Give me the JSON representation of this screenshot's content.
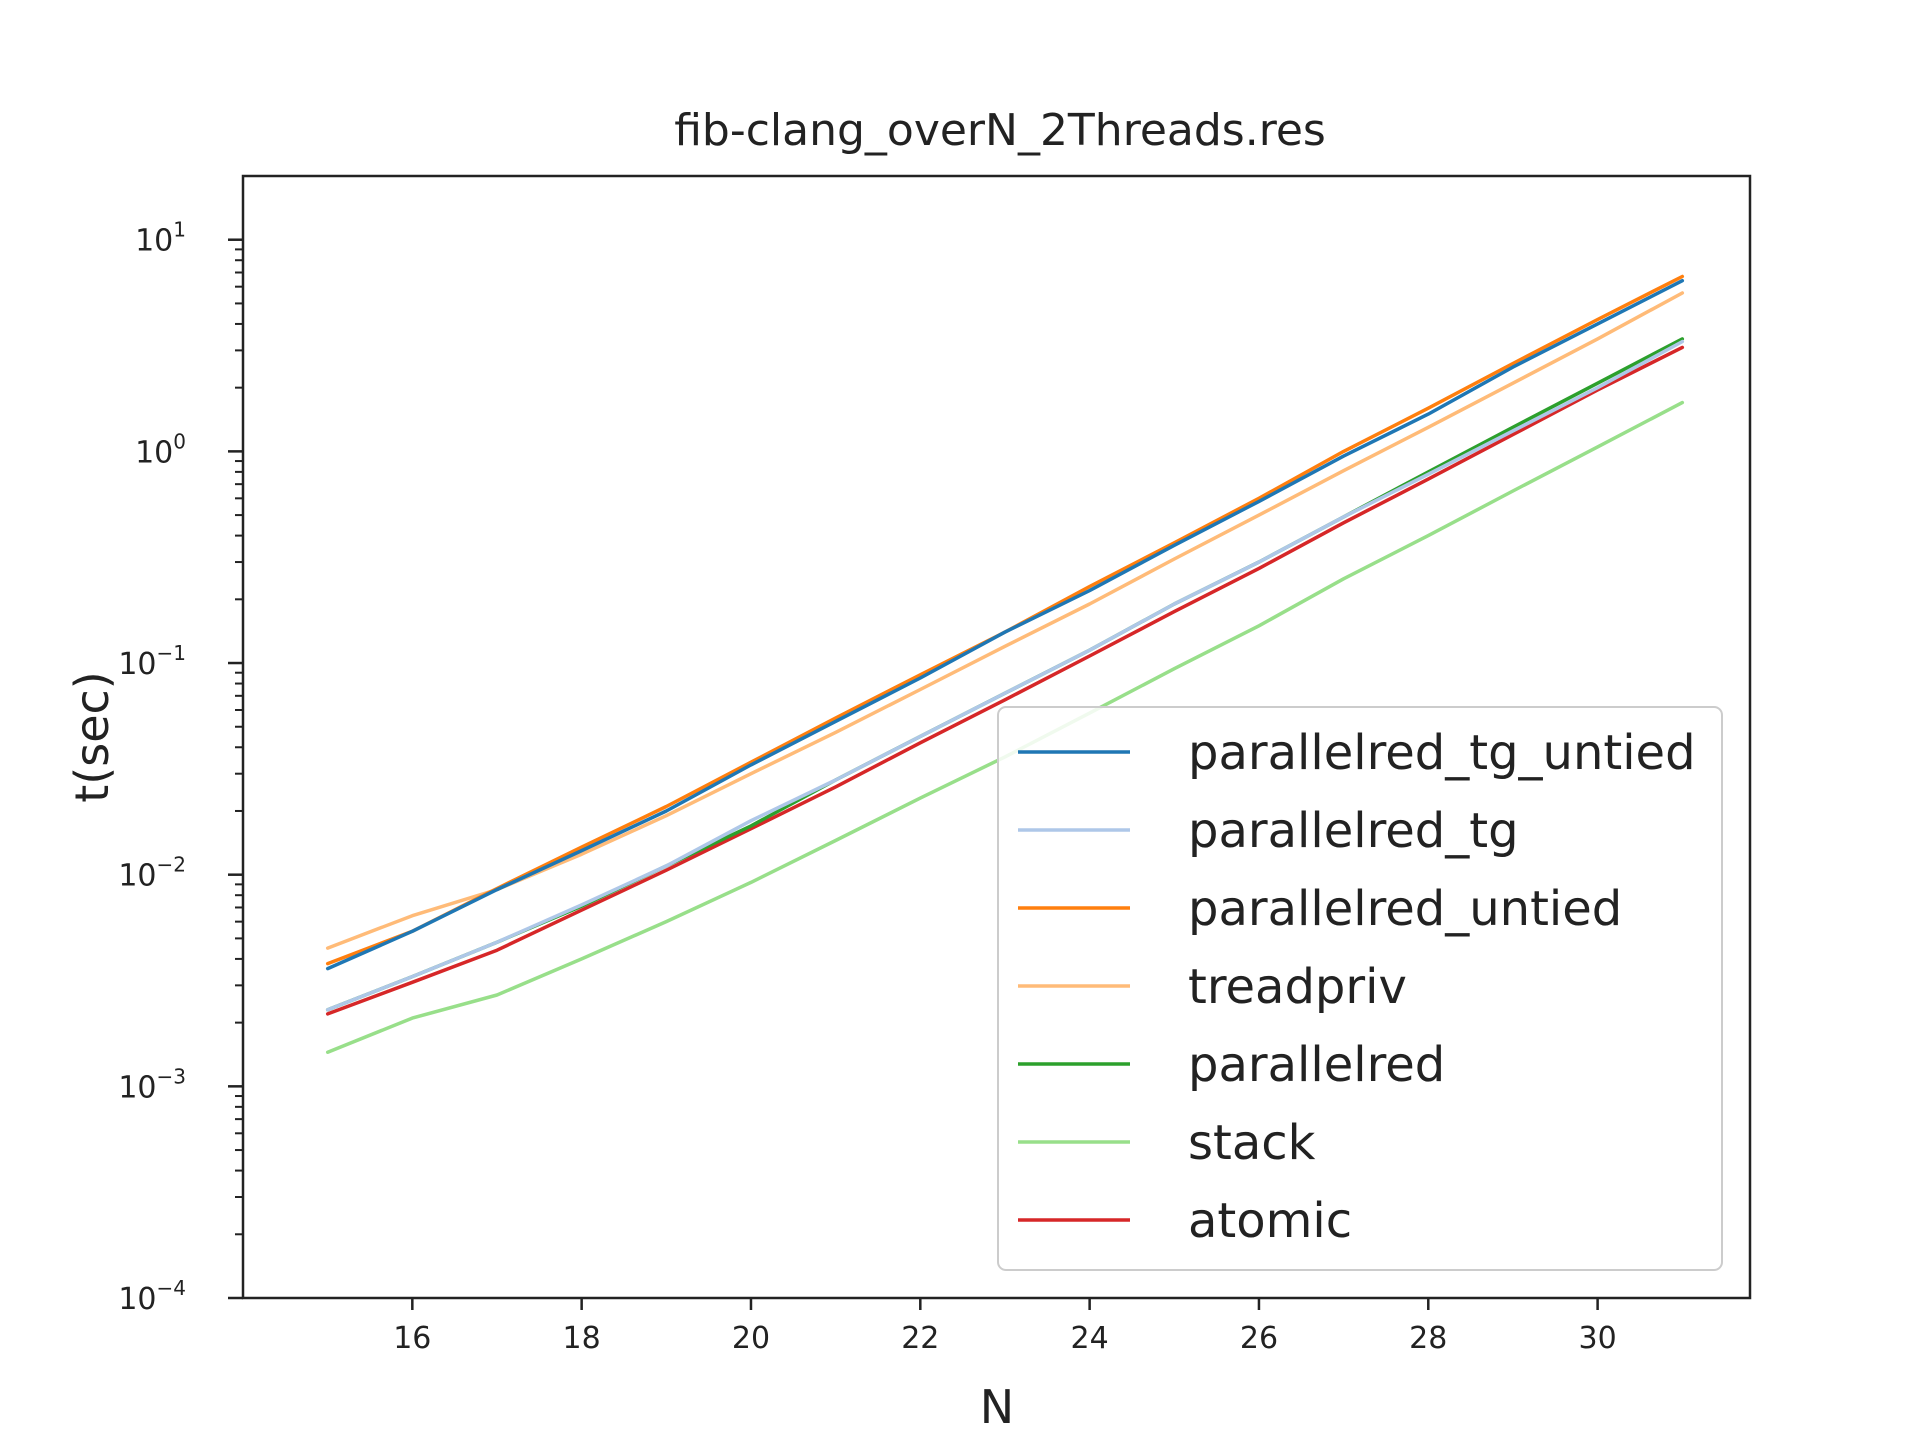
{
  "chart_data": {
    "type": "line",
    "title": "fib-clang_overN_2Threads.res",
    "xlabel": "N",
    "ylabel": "t(sec)",
    "yscale": "log",
    "xlim": [
      14.0,
      31.8
    ],
    "ylim": [
      0.0001,
      20
    ],
    "xticks": [
      "16",
      "18",
      "20",
      "22",
      "24",
      "26",
      "28",
      "30"
    ],
    "yticks": [
      {
        "base": "10",
        "exp": "−4",
        "value": 0.0001
      },
      {
        "base": "10",
        "exp": "−3",
        "value": 0.001
      },
      {
        "base": "10",
        "exp": "−2",
        "value": 0.01
      },
      {
        "base": "10",
        "exp": "−1",
        "value": 0.1
      },
      {
        "base": "10",
        "exp": "0",
        "value": 1
      },
      {
        "base": "10",
        "exp": "1",
        "value": 10
      }
    ],
    "grid": false,
    "legend_position": "lower-right",
    "x": [
      15,
      16,
      17,
      18,
      19,
      20,
      21,
      22,
      23,
      24,
      25,
      26,
      27,
      28,
      29,
      30,
      31
    ],
    "series": [
      {
        "name": "parallelred_tg_untied",
        "color": "#1f77b4",
        "values": [
          0.0036,
          0.0054,
          0.0085,
          0.013,
          0.02,
          0.033,
          0.053,
          0.085,
          0.14,
          0.22,
          0.36,
          0.58,
          0.95,
          1.5,
          2.5,
          4.0,
          6.4
        ]
      },
      {
        "name": "parallelred_tg",
        "color": "#aec7e8",
        "values": [
          0.0023,
          0.0033,
          0.0048,
          0.0072,
          0.011,
          0.018,
          0.028,
          0.045,
          0.072,
          0.115,
          0.19,
          0.3,
          0.49,
          0.78,
          1.25,
          2.0,
          3.3
        ]
      },
      {
        "name": "parallelred_untied",
        "color": "#ff7f0e",
        "values": [
          0.0038,
          0.0054,
          0.0086,
          0.0135,
          0.021,
          0.034,
          0.055,
          0.088,
          0.14,
          0.23,
          0.37,
          0.6,
          1.0,
          1.6,
          2.6,
          4.2,
          6.7
        ]
      },
      {
        "name": "treadpriv",
        "color": "#ffbb78",
        "values": [
          0.0045,
          0.0064,
          0.0085,
          0.0125,
          0.019,
          0.03,
          0.047,
          0.075,
          0.12,
          0.19,
          0.31,
          0.5,
          0.81,
          1.3,
          2.1,
          3.4,
          5.6
        ]
      },
      {
        "name": "parallelred",
        "color": "#2ca02c",
        "values": [
          0.0023,
          0.0033,
          0.0048,
          0.0071,
          0.011,
          0.017,
          0.028,
          0.045,
          0.072,
          0.115,
          0.19,
          0.3,
          0.49,
          0.8,
          1.3,
          2.1,
          3.4
        ]
      },
      {
        "name": "stack",
        "color": "#98df8a",
        "values": [
          0.00145,
          0.0021,
          0.0027,
          0.004,
          0.006,
          0.0092,
          0.0145,
          0.023,
          0.036,
          0.058,
          0.094,
          0.15,
          0.25,
          0.4,
          0.65,
          1.05,
          1.7
        ]
      },
      {
        "name": "atomic",
        "color": "#d62728",
        "values": [
          0.0022,
          0.0031,
          0.0044,
          0.0068,
          0.0105,
          0.0165,
          0.026,
          0.042,
          0.067,
          0.108,
          0.175,
          0.28,
          0.46,
          0.74,
          1.2,
          1.95,
          3.1
        ]
      }
    ]
  }
}
